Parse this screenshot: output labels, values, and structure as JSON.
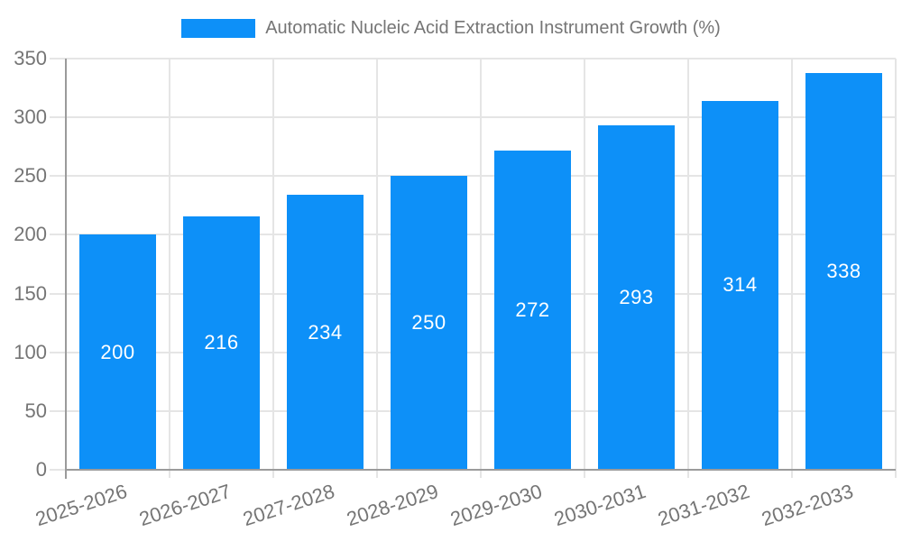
{
  "chart_data": {
    "type": "bar",
    "title": "Automatic Nucleic Acid Extraction Instrument Growth (%)",
    "categories": [
      "2025-2026",
      "2026-2027",
      "2027-2028",
      "2028-2029",
      "2029-2030",
      "2030-2031",
      "2031-2032",
      "2032-2033"
    ],
    "values": [
      200,
      216,
      234,
      250,
      272,
      293,
      314,
      338
    ],
    "xlabel": "",
    "ylabel": "",
    "ylim": [
      0,
      350
    ],
    "y_ticks": [
      0,
      50,
      100,
      150,
      200,
      250,
      300,
      350
    ],
    "grid": true,
    "legend_position": "top",
    "value_labels": "inside-center"
  },
  "colors": {
    "bar": "#0D90F8",
    "grid": "#E5E5E5",
    "axis": "#9B9B9B",
    "tick_text": "#757575",
    "legend_text": "#757575",
    "value_text": "#FFFFFF",
    "background": "#FFFFFF"
  }
}
